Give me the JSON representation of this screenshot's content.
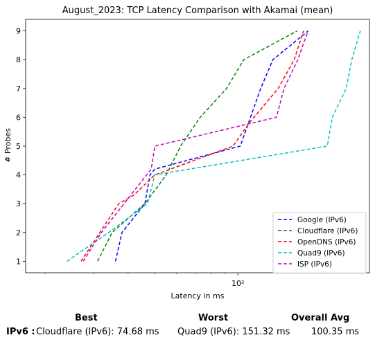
{
  "chart_data": {
    "type": "line",
    "title": "August_2023: TCP Latency Comparison with Akamai (mean)",
    "xlabel": "Latency in ms",
    "ylabel": "# Probes",
    "xscale": "log",
    "xlim": [
      17,
      300
    ],
    "ylim": [
      0.6,
      9.4
    ],
    "x_ticks": [
      {
        "value": 100,
        "label": "10²"
      }
    ],
    "y_ticks": [
      1,
      2,
      3,
      4,
      5,
      6,
      7,
      8,
      9
    ],
    "grid": false,
    "legend_position": "lower-right",
    "series": [
      {
        "name": "Google (IPv6)",
        "color": "#0000ff",
        "dash": "dashed",
        "x": [
          36.0,
          38.0,
          46.0,
          48.0,
          50.0,
          102.0,
          121.0,
          134.0,
          180.0
        ],
        "y": [
          1,
          2,
          3,
          4,
          4.2,
          5,
          7,
          8,
          9
        ]
      },
      {
        "name": "Cloudflare (IPv6)",
        "color": "#008000",
        "dash": "dashed",
        "x": [
          31.0,
          35.0,
          46.0,
          55.0,
          62.0,
          73.0,
          91.0,
          105.0,
          164.0
        ],
        "y": [
          1,
          2,
          3,
          4,
          5,
          6,
          7,
          8,
          9
        ]
      },
      {
        "name": "OpenDNS (IPv6)",
        "color": "#ff0000",
        "dash": "dashed",
        "x": [
          27.0,
          37.0,
          42.0,
          50.0,
          96.0,
          110.0,
          140.0,
          160.0,
          173.0
        ],
        "y": [
          1,
          3,
          3.3,
          4,
          5,
          5.8,
          7,
          8,
          9
        ]
      },
      {
        "name": "Quad9 (IPv6)",
        "color": "#00bfbf",
        "dash": "dashed",
        "x": [
          24.0,
          34.0,
          47.0,
          50.0,
          211.0,
          220.0,
          247.0,
          259.0,
          278.0
        ],
        "y": [
          1,
          2,
          3,
          4,
          5,
          6,
          7,
          8,
          9
        ]
      },
      {
        "name": "ISP (IPv6)",
        "color": "#bf00bf",
        "dash": "dashed",
        "x": [
          27.5,
          32.0,
          48.5,
          50.0,
          138.0,
          147.0,
          165.0,
          172.0,
          180.0
        ],
        "y": [
          1,
          2,
          4.2,
          5,
          6,
          7,
          8,
          8.5,
          9
        ]
      }
    ]
  },
  "summary": {
    "best_header": "Best",
    "worst_header": "Worst",
    "avg_header": "Overall Avg",
    "row_label": "IPv6 :",
    "best_value": "Cloudflare (IPv6): 74.68 ms",
    "worst_value": "Quad9 (IPv6): 151.32 ms",
    "avg_value": "100.35 ms"
  }
}
